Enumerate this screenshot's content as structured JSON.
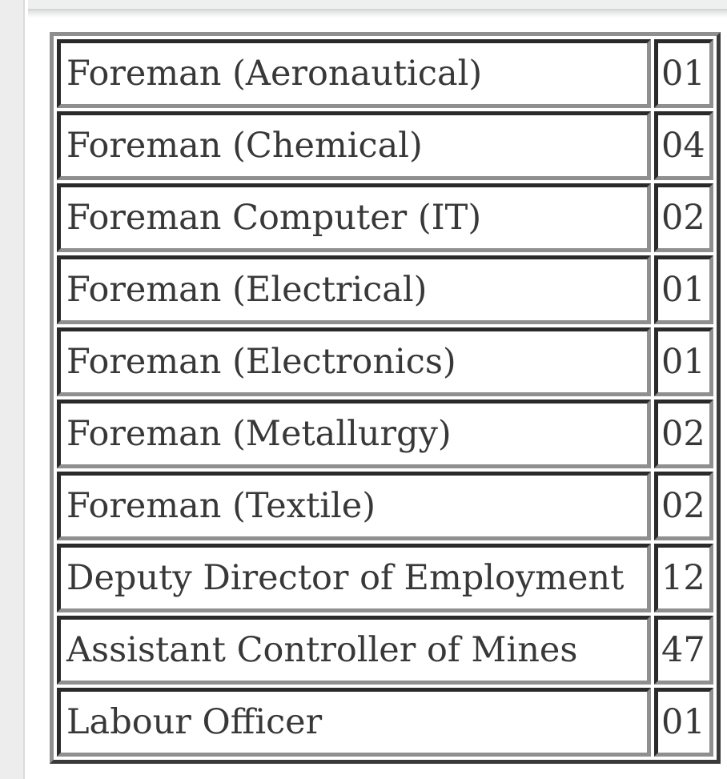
{
  "chrome": {
    "left_gutter_color": "#ededed",
    "top_bar_color": "#eef0ef"
  },
  "colors": {
    "cell_border_dark": "#2a2a2a",
    "cell_border_light": "#8f8f8f",
    "frame_border_light": "#8f8f8f",
    "frame_border_dark": "#3a3a3a",
    "text": "#383838"
  },
  "table": {
    "rows": [
      {
        "post": "Foreman (Aeronautical)",
        "count": "01"
      },
      {
        "post": "Foreman (Chemical)",
        "count": "04"
      },
      {
        "post": "Foreman Computer (IT)",
        "count": "02"
      },
      {
        "post": "Foreman (Electrical)",
        "count": "01"
      },
      {
        "post": "Foreman (Electronics)",
        "count": "01"
      },
      {
        "post": "Foreman (Metallurgy)",
        "count": "02"
      },
      {
        "post": "Foreman (Textile)",
        "count": "02"
      },
      {
        "post": "Deputy Director of Employment",
        "count": "12"
      },
      {
        "post": "Assistant Controller of Mines",
        "count": "47"
      },
      {
        "post": "Labour Officer",
        "count": "01"
      }
    ]
  }
}
